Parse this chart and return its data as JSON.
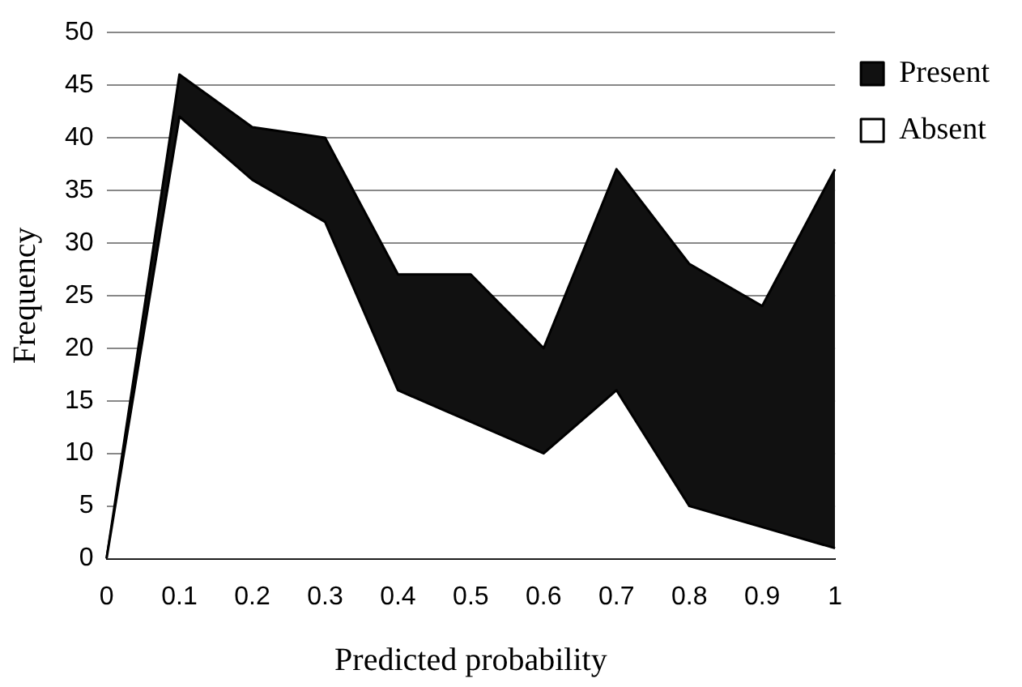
{
  "chart_data": {
    "type": "area",
    "stacked": true,
    "xlabel": "Predicted probability",
    "ylabel": "Frequency",
    "categories": [
      "0",
      "0.1",
      "0.2",
      "0.3",
      "0.4",
      "0.5",
      "0.6",
      "0.7",
      "0.8",
      "0.9",
      "1"
    ],
    "series": [
      {
        "name": "Absent",
        "color": "#ffffff",
        "values": [
          0,
          42,
          36,
          32,
          16,
          13,
          10,
          16,
          5,
          3,
          1
        ]
      },
      {
        "name": "Present",
        "color": "#111111",
        "values": [
          0,
          4,
          5,
          8,
          11,
          14,
          10,
          21,
          23,
          21,
          36
        ]
      }
    ],
    "ylim": [
      0,
      50
    ],
    "yticks": [
      0,
      5,
      10,
      15,
      20,
      25,
      30,
      35,
      40,
      45,
      50
    ],
    "grid": "y",
    "legend": "top right"
  }
}
